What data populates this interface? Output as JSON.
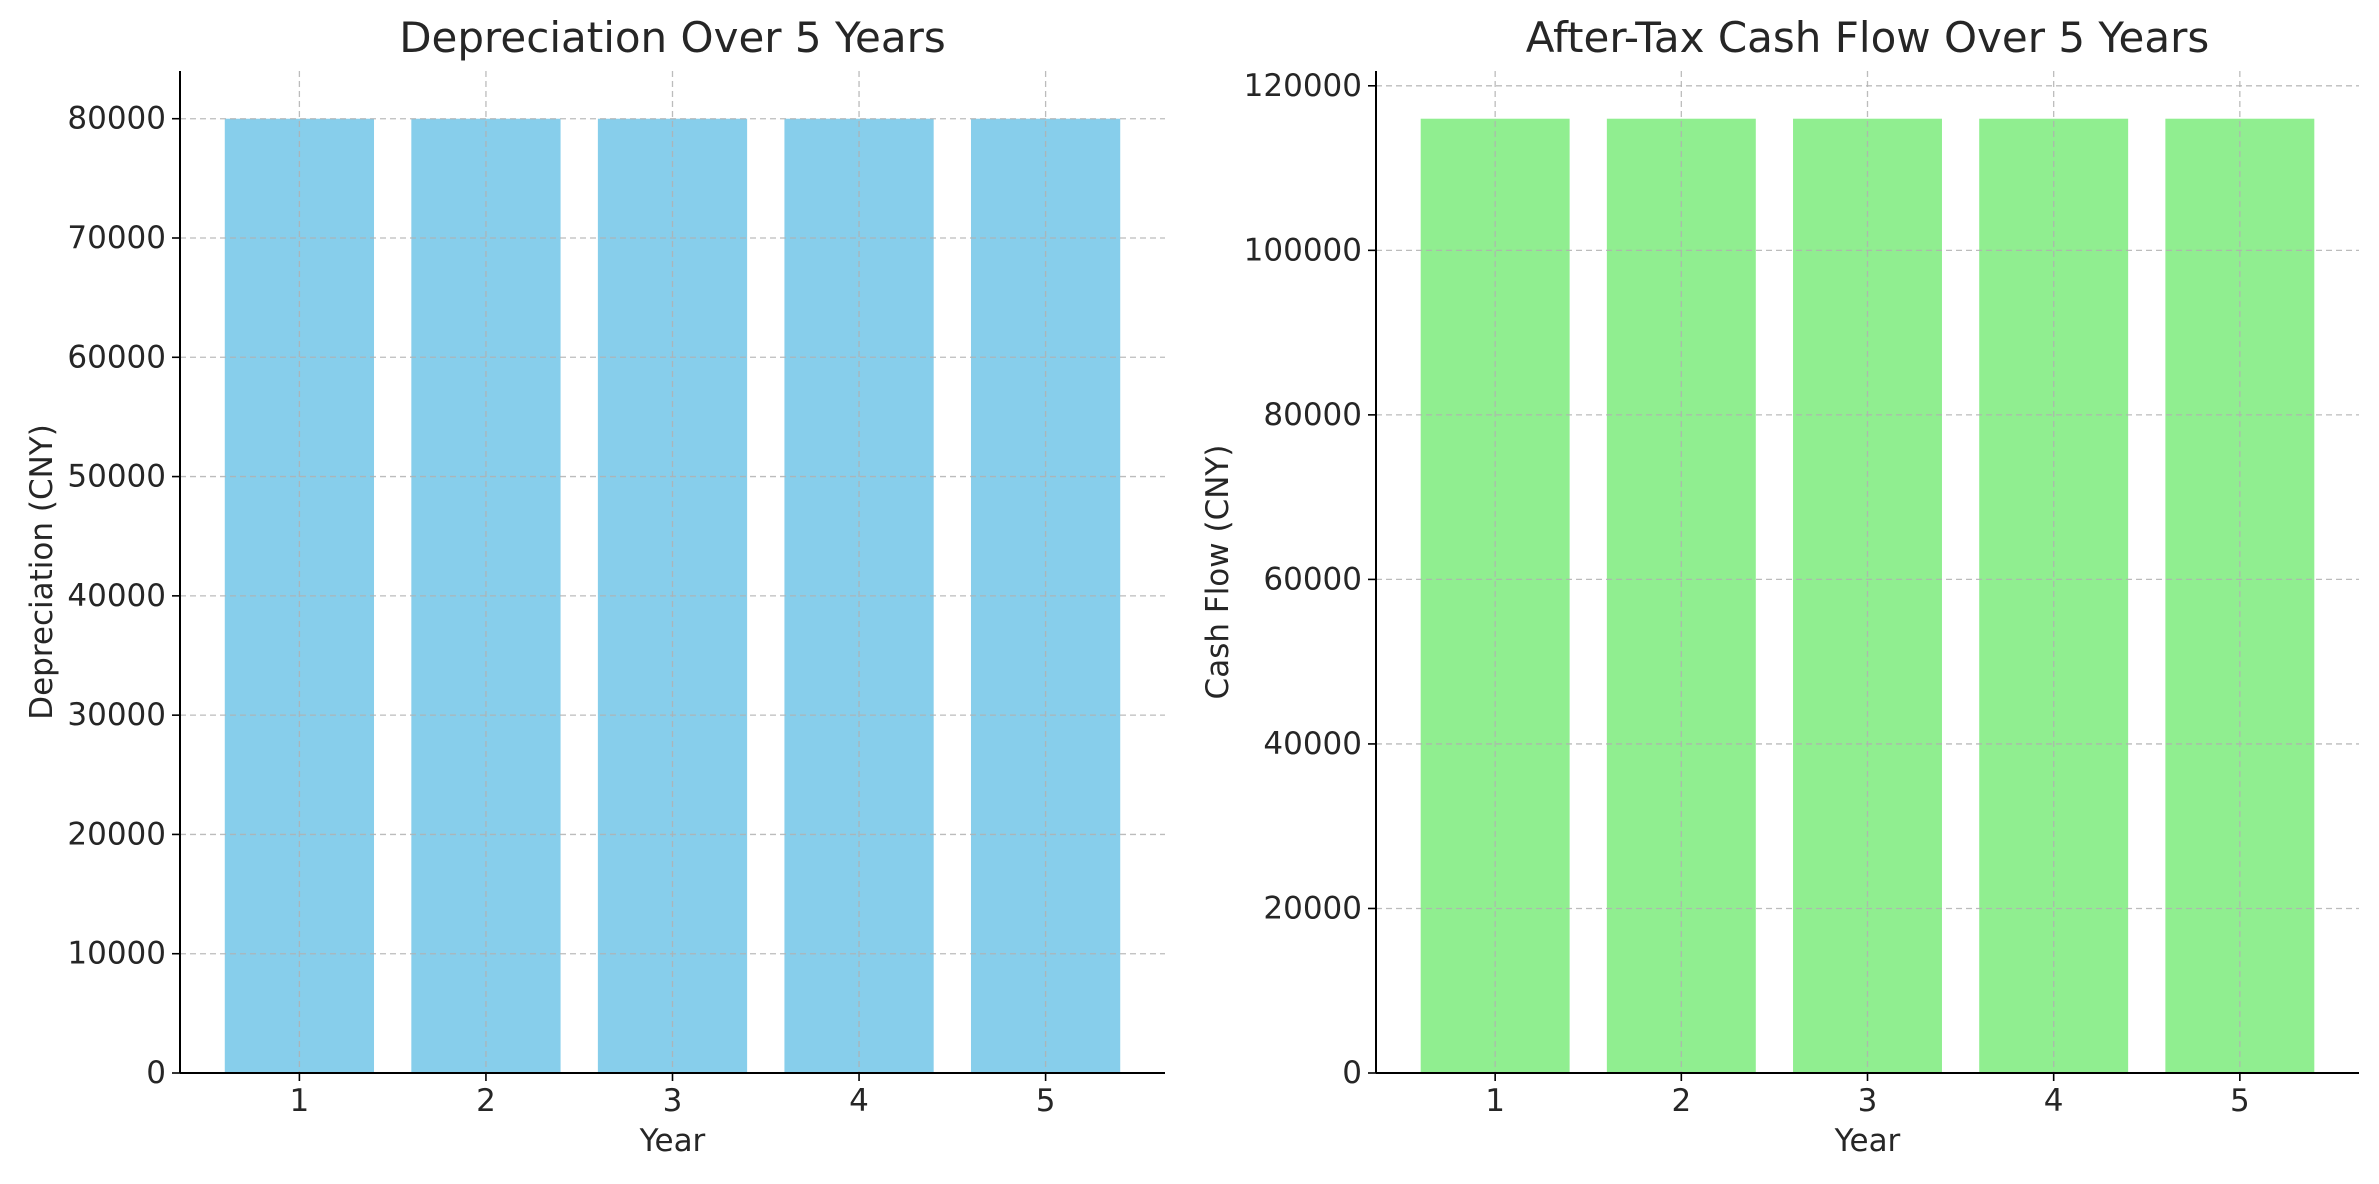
{
  "chart_data": [
    {
      "type": "bar",
      "title": "Depreciation Over 5 Years",
      "xlabel": "Year",
      "ylabel": "Depreciation (CNY)",
      "categories": [
        "1",
        "2",
        "3",
        "4",
        "5"
      ],
      "values": [
        80000,
        80000,
        80000,
        80000,
        80000
      ],
      "ylim": [
        0,
        84000
      ],
      "yticks": [
        0,
        10000,
        20000,
        30000,
        40000,
        50000,
        60000,
        70000,
        80000
      ],
      "grid": true,
      "legend": "none",
      "color": "#87ceeb"
    },
    {
      "type": "bar",
      "title": "After-Tax Cash Flow Over 5 Years",
      "xlabel": "Year",
      "ylabel": "Cash Flow (CNY)",
      "categories": [
        "1",
        "2",
        "3",
        "4",
        "5"
      ],
      "values": [
        116000,
        116000,
        116000,
        116000,
        116000
      ],
      "ylim": [
        0,
        121800
      ],
      "yticks": [
        0,
        20000,
        40000,
        60000,
        80000,
        100000,
        120000
      ],
      "grid": true,
      "legend": "none",
      "color": "#90ee90"
    }
  ]
}
